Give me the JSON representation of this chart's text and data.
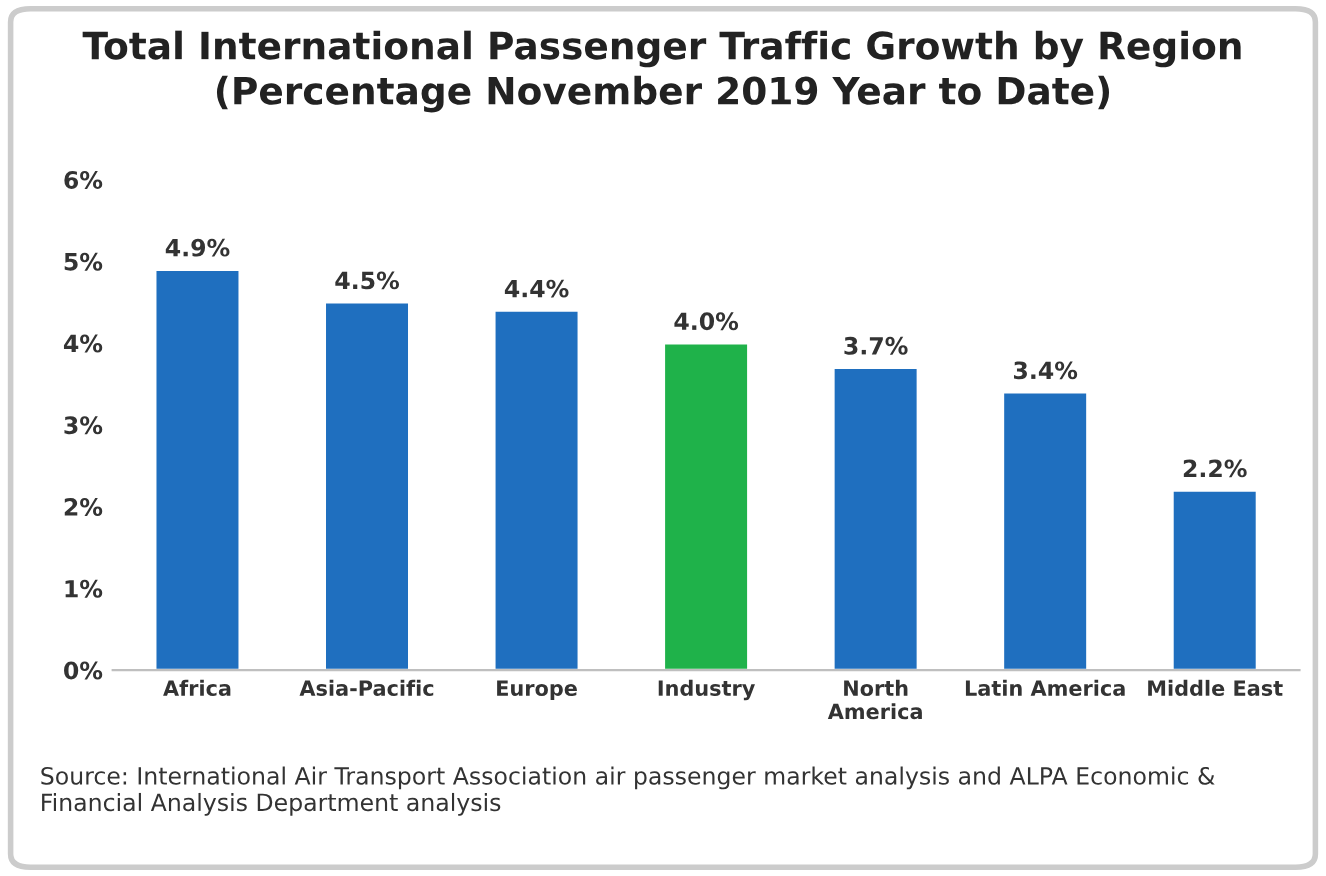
{
  "chart_data": {
    "type": "bar",
    "title": "Total International Passenger Traffic Growth by Region\n(Percentage November 2019 Year to Date)",
    "categories": [
      "Africa",
      "Asia-Pacific",
      "Europe",
      "Industry",
      "North\nAmerica",
      "Latin America",
      "Middle East"
    ],
    "values": [
      4.9,
      4.5,
      4.4,
      4.0,
      3.7,
      3.4,
      2.2
    ],
    "value_labels": [
      "4.9%",
      "4.5%",
      "4.4%",
      "4.0%",
      "3.7%",
      "3.4%",
      "2.2%"
    ],
    "colors": [
      "#1f6fbf",
      "#1f6fbf",
      "#1f6fbf",
      "#1fb24a",
      "#1f6fbf",
      "#1f6fbf",
      "#1f6fbf"
    ],
    "ylim": [
      0,
      6
    ],
    "yticks": [
      {
        "value": 0,
        "label": "0%"
      },
      {
        "value": 1,
        "label": "1%"
      },
      {
        "value": 2,
        "label": "2%"
      },
      {
        "value": 3,
        "label": "3%"
      },
      {
        "value": 4,
        "label": "4%"
      },
      {
        "value": 5,
        "label": "5%"
      },
      {
        "value": 6,
        "label": "6%"
      }
    ],
    "grid": false,
    "legend": false,
    "annotations": [
      "Source: International Air Transport Association air passenger market analysis and ALPA Economic & Financial Analysis Department analysis"
    ]
  }
}
